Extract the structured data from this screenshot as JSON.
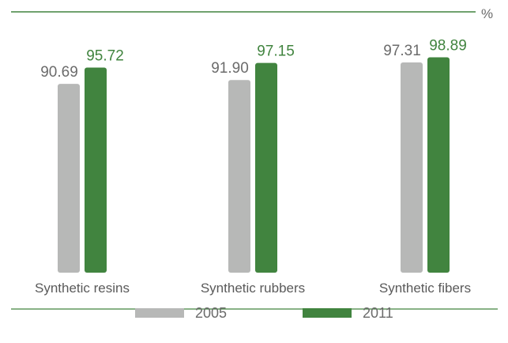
{
  "unit_label": "%",
  "colors": {
    "2005": "#b7b8b7",
    "2011": "#41843f",
    "line": "#41843f",
    "label_2005": "#6b6b6b",
    "label_2011": "#41843f"
  },
  "chart_data": {
    "type": "bar",
    "categories": [
      "Synthetic resins",
      "Synthetic rubbers",
      "Synthetic fibers"
    ],
    "series": [
      {
        "name": "2005",
        "values": [
          90.69,
          91.9,
          97.31
        ],
        "value_labels": [
          "90.69",
          "91.90",
          "97.31"
        ]
      },
      {
        "name": "2011",
        "values": [
          95.72,
          97.15,
          98.89
        ],
        "value_labels": [
          "95.72",
          "97.15",
          "98.89"
        ]
      }
    ],
    "ylim": [
      0,
      100
    ],
    "grid": false,
    "legend": "bottom",
    "unit": "%"
  },
  "legend": [
    {
      "label": "2005"
    },
    {
      "label": "2011"
    }
  ]
}
